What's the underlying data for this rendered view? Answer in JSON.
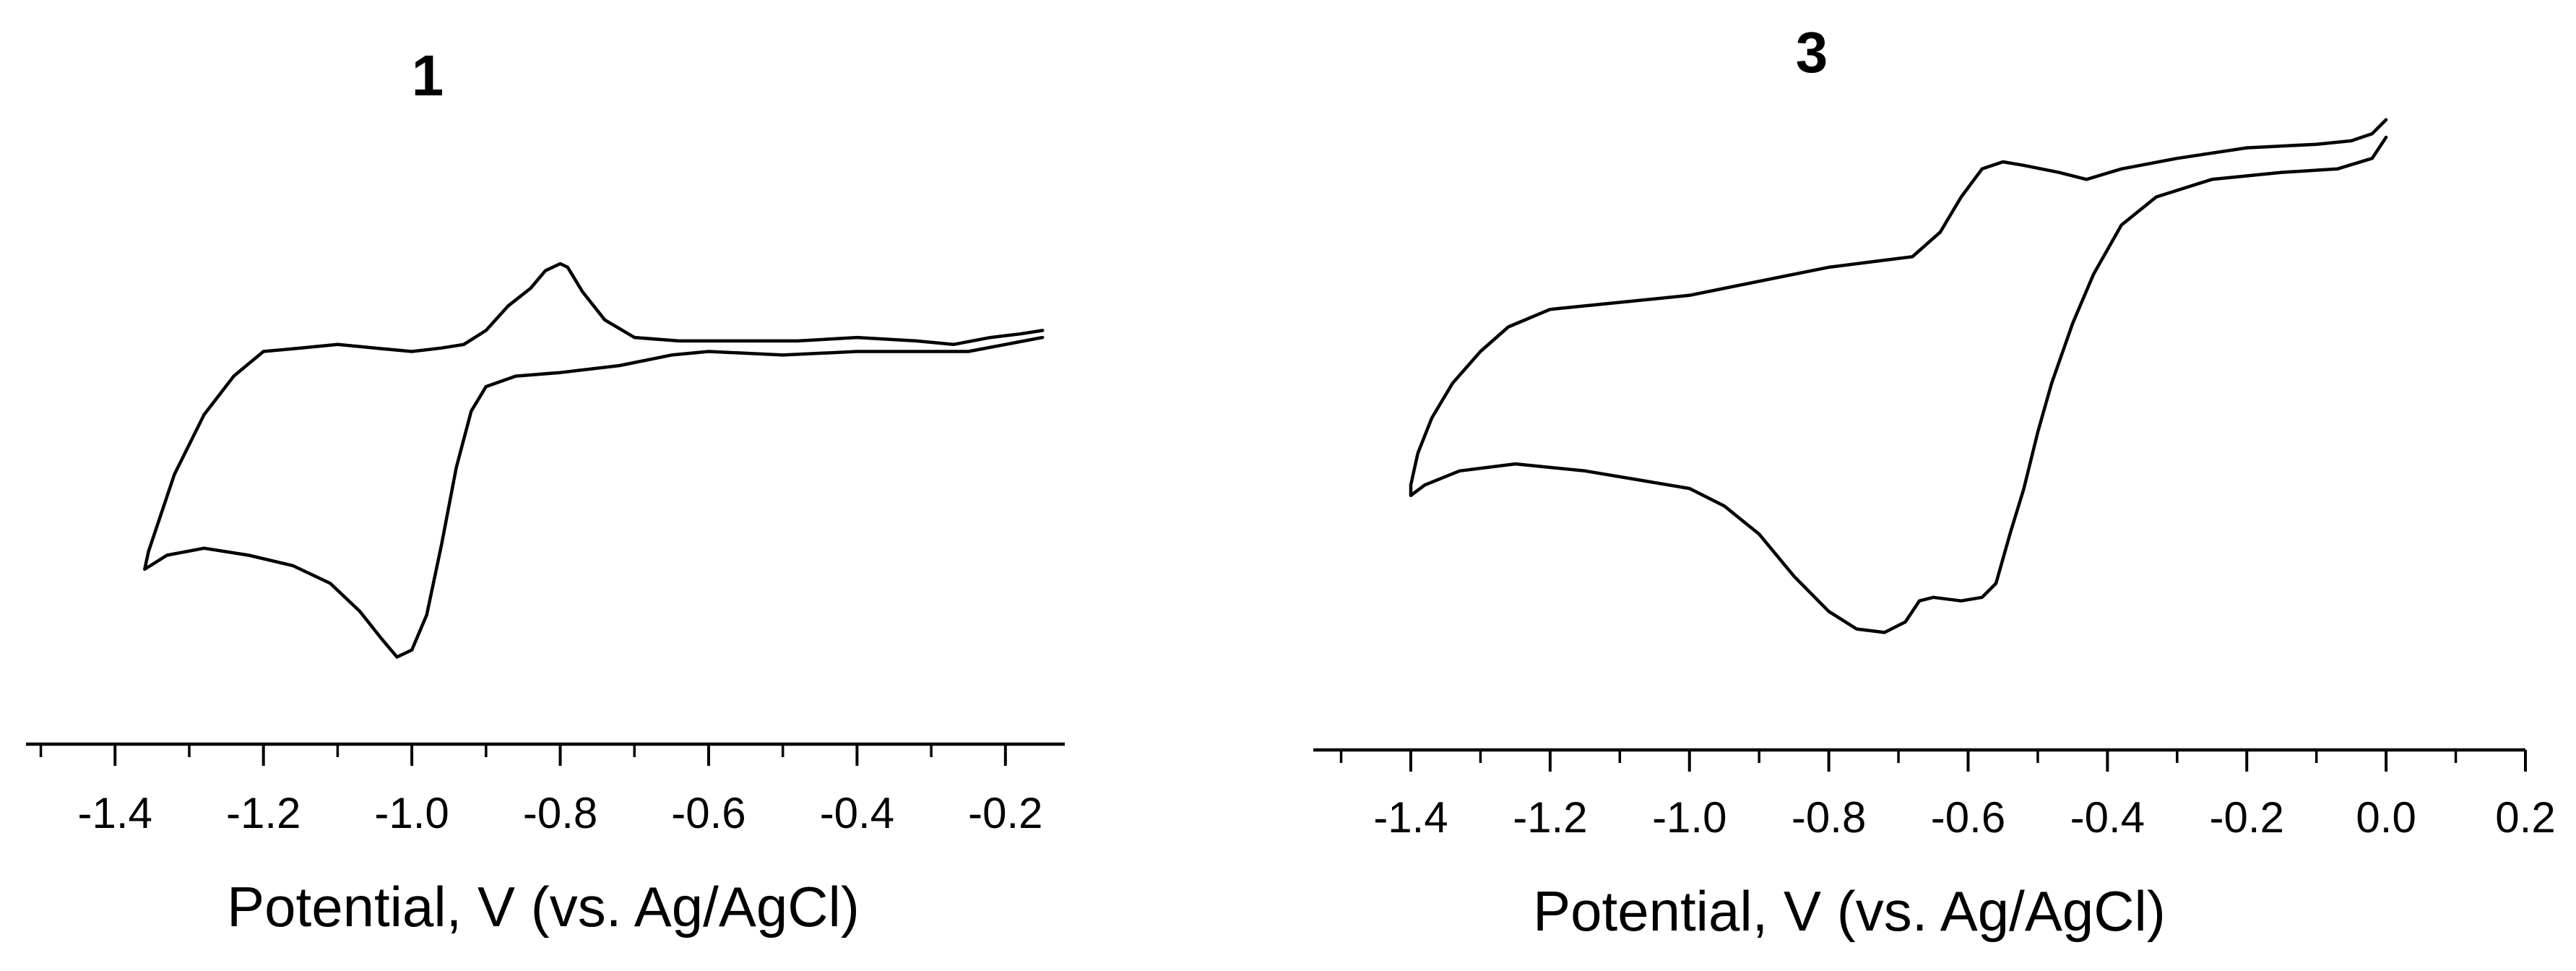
{
  "chart_data": [
    {
      "type": "line",
      "title": "1",
      "xlabel": "Potential, V (vs. Ag/AgCl)",
      "ylabel": "",
      "y_axis_shown": false,
      "grid": false,
      "legend": "none",
      "xlim": [
        -1.52,
        -0.12
      ],
      "ylim": [
        -0.72,
        0.72
      ],
      "xticks": [
        -1.4,
        -1.2,
        -1.0,
        -0.8,
        -0.6,
        -0.4,
        -0.2
      ],
      "xtick_labels": [
        "-1.4",
        "-1.2",
        "-1.0",
        "-0.8",
        "-0.6",
        "-0.4",
        "-0.2"
      ],
      "xtick_minor_step": 0.1,
      "series": [
        {
          "points": [
            [
              -0.15,
              0.17
            ],
            [
              -0.18,
              0.16
            ],
            [
              -0.22,
              0.15
            ],
            [
              -0.27,
              0.13
            ],
            [
              -0.32,
              0.14
            ],
            [
              -0.4,
              0.15
            ],
            [
              -0.48,
              0.14
            ],
            [
              -0.56,
              0.14
            ],
            [
              -0.64,
              0.14
            ],
            [
              -0.7,
              0.15
            ],
            [
              -0.74,
              0.2
            ],
            [
              -0.77,
              0.28
            ],
            [
              -0.79,
              0.35
            ],
            [
              -0.8,
              0.36
            ],
            [
              -0.82,
              0.34
            ],
            [
              -0.84,
              0.29
            ],
            [
              -0.87,
              0.24
            ],
            [
              -0.9,
              0.17
            ],
            [
              -0.93,
              0.13
            ],
            [
              -0.96,
              0.12
            ],
            [
              -1.0,
              0.11
            ],
            [
              -1.05,
              0.12
            ],
            [
              -1.1,
              0.13
            ],
            [
              -1.15,
              0.12
            ],
            [
              -1.2,
              0.11
            ],
            [
              -1.24,
              0.04
            ],
            [
              -1.28,
              -0.07
            ],
            [
              -1.32,
              -0.24
            ],
            [
              -1.355,
              -0.46
            ],
            [
              -1.36,
              -0.51
            ],
            [
              -1.33,
              -0.47
            ],
            [
              -1.28,
              -0.45
            ],
            [
              -1.22,
              -0.47
            ],
            [
              -1.16,
              -0.5
            ],
            [
              -1.11,
              -0.55
            ],
            [
              -1.07,
              -0.63
            ],
            [
              -1.04,
              -0.71
            ],
            [
              -1.02,
              -0.76
            ],
            [
              -1.0,
              -0.74
            ],
            [
              -0.98,
              -0.64
            ],
            [
              -0.96,
              -0.44
            ],
            [
              -0.94,
              -0.22
            ],
            [
              -0.92,
              -0.06
            ],
            [
              -0.9,
              0.01
            ],
            [
              -0.86,
              0.04
            ],
            [
              -0.8,
              0.05
            ],
            [
              -0.72,
              0.07
            ],
            [
              -0.65,
              0.1
            ],
            [
              -0.6,
              0.11
            ],
            [
              -0.5,
              0.1
            ],
            [
              -0.4,
              0.11
            ],
            [
              -0.3,
              0.11
            ],
            [
              -0.25,
              0.11
            ],
            [
              -0.2,
              0.13
            ],
            [
              -0.15,
              0.15
            ]
          ]
        }
      ]
    },
    {
      "type": "line",
      "title": "3",
      "xlabel": "Potential, V (vs. Ag/AgCl)",
      "ylabel": "",
      "y_axis_shown": false,
      "grid": false,
      "legend": "none",
      "xlim": [
        -1.54,
        0.2
      ],
      "ylim": [
        -0.72,
        0.72
      ],
      "xticks": [
        -1.4,
        -1.2,
        -1.0,
        -0.8,
        -0.6,
        -0.4,
        -0.2,
        0.0,
        0.2
      ],
      "xtick_labels": [
        "-1.4",
        "-1.2",
        "-1.0",
        "-0.8",
        "-0.6",
        "-0.4",
        "-0.2",
        "0.0",
        "0.2"
      ],
      "xtick_minor_step": 0.1,
      "series": [
        {
          "points": [
            [
              0.0,
              0.77
            ],
            [
              -0.02,
              0.73
            ],
            [
              -0.05,
              0.71
            ],
            [
              -0.1,
              0.7
            ],
            [
              -0.2,
              0.69
            ],
            [
              -0.3,
              0.66
            ],
            [
              -0.38,
              0.63
            ],
            [
              -0.43,
              0.6
            ],
            [
              -0.47,
              0.62
            ],
            [
              -0.52,
              0.64
            ],
            [
              -0.55,
              0.65
            ],
            [
              -0.58,
              0.63
            ],
            [
              -0.61,
              0.55
            ],
            [
              -0.64,
              0.45
            ],
            [
              -0.68,
              0.38
            ],
            [
              -0.72,
              0.37
            ],
            [
              -0.8,
              0.35
            ],
            [
              -0.9,
              0.31
            ],
            [
              -1.0,
              0.27
            ],
            [
              -1.1,
              0.25
            ],
            [
              -1.2,
              0.23
            ],
            [
              -1.26,
              0.18
            ],
            [
              -1.3,
              0.11
            ],
            [
              -1.34,
              0.02
            ],
            [
              -1.37,
              -0.08
            ],
            [
              -1.39,
              -0.18
            ],
            [
              -1.4,
              -0.27
            ],
            [
              -1.4,
              -0.3
            ],
            [
              -1.38,
              -0.27
            ],
            [
              -1.33,
              -0.23
            ],
            [
              -1.25,
              -0.21
            ],
            [
              -1.15,
              -0.23
            ],
            [
              -1.06,
              -0.26
            ],
            [
              -1.0,
              -0.28
            ],
            [
              -0.95,
              -0.33
            ],
            [
              -0.9,
              -0.41
            ],
            [
              -0.85,
              -0.53
            ],
            [
              -0.8,
              -0.63
            ],
            [
              -0.76,
              -0.68
            ],
            [
              -0.72,
              -0.69
            ],
            [
              -0.69,
              -0.66
            ],
            [
              -0.67,
              -0.6
            ],
            [
              -0.65,
              -0.59
            ],
            [
              -0.61,
              -0.6
            ],
            [
              -0.58,
              -0.59
            ],
            [
              -0.56,
              -0.55
            ],
            [
              -0.54,
              -0.41
            ],
            [
              -0.52,
              -0.28
            ],
            [
              -0.5,
              -0.12
            ],
            [
              -0.48,
              0.02
            ],
            [
              -0.45,
              0.19
            ],
            [
              -0.42,
              0.33
            ],
            [
              -0.38,
              0.47
            ],
            [
              -0.33,
              0.55
            ],
            [
              -0.25,
              0.6
            ],
            [
              -0.15,
              0.62
            ],
            [
              -0.07,
              0.63
            ],
            [
              -0.02,
              0.66
            ],
            [
              0.0,
              0.72
            ]
          ]
        }
      ]
    }
  ]
}
